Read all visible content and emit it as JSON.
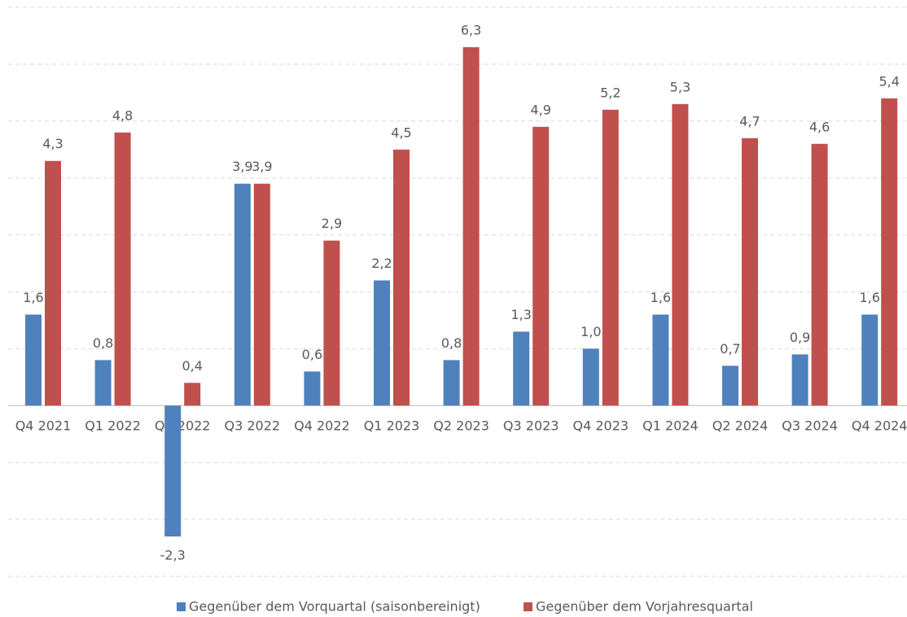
{
  "chart_data": {
    "type": "bar",
    "categories": [
      "Q4 2021",
      "Q1 2022",
      "Q2 2022",
      "Q3 2022",
      "Q4 2022",
      "Q1 2023",
      "Q2 2023",
      "Q3 2023",
      "Q4 2023",
      "Q1 2024",
      "Q2 2024",
      "Q3 2024",
      "Q4 2024"
    ],
    "series": [
      {
        "name": "Gegenüber dem Vorquartal (saisonbereinigt)",
        "color": "#4f81bd",
        "values": [
          1.6,
          0.8,
          -2.3,
          3.9,
          0.6,
          2.2,
          0.8,
          1.3,
          1.0,
          1.6,
          0.7,
          0.9,
          1.6
        ],
        "value_labels": [
          "1,6",
          "0,8",
          "-2,3",
          "3,9",
          "0,6",
          "2,2",
          "0,8",
          "1,3",
          "1,0",
          "1,6",
          "0,7",
          "0,9",
          "1,6"
        ]
      },
      {
        "name": "Gegenüber dem Vorjahresquartal",
        "color": "#c0504d",
        "values": [
          4.3,
          4.8,
          0.4,
          3.9,
          2.9,
          4.5,
          6.3,
          4.9,
          5.2,
          5.3,
          4.7,
          4.6,
          5.4
        ],
        "value_labels": [
          "4,3",
          "4,8",
          "0,4",
          "3,9",
          "2,9",
          "4,5",
          "6,3",
          "4,9",
          "5,2",
          "5,3",
          "4,7",
          "4,6",
          "5,4"
        ]
      }
    ],
    "ylim": [
      -3,
      7
    ],
    "yticks": [
      -3,
      -2,
      -1,
      0,
      1,
      2,
      3,
      4,
      5,
      6,
      7
    ],
    "grid": true,
    "legend": "bottom"
  }
}
